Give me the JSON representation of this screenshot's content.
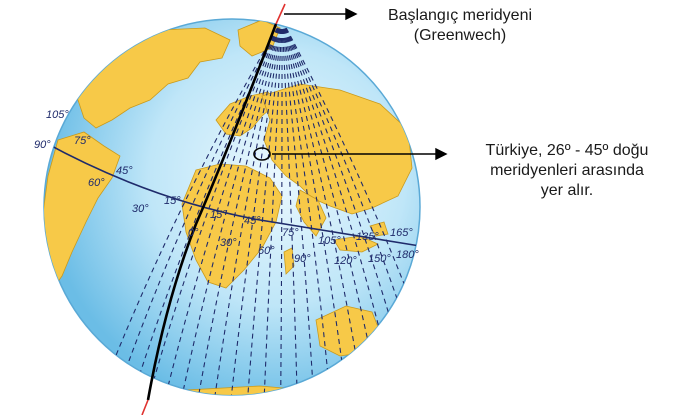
{
  "callouts": {
    "greenwich": {
      "line1": "Başlangıç meridyeni",
      "line2": "(Greenwech)"
    },
    "turkey": {
      "line1": "Türkiye, 26º - 45º doğu",
      "line2": "meridyenleri arasında",
      "line3": "yer alır."
    }
  },
  "meridian_labels": {
    "west": [
      "105°",
      "90°",
      "75°",
      "60°",
      "45°",
      "30°",
      "15°"
    ],
    "prime": "0°",
    "east_upper": [
      "15°",
      "45°",
      "75°",
      "105°",
      "135°",
      "165°"
    ],
    "east_lower": [
      "30°",
      "60°",
      "90°",
      "120°",
      "150°",
      "180°"
    ]
  },
  "colors": {
    "ocean": "#8fd0f1",
    "ocean_light": "#e6f6fd",
    "land": "#f7c948",
    "meridian": "#1f2b6b",
    "prime_meridian": "#000000",
    "axis": "#e0322f"
  }
}
